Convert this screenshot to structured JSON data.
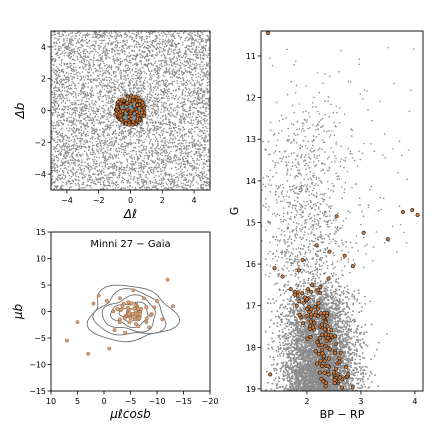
{
  "chart_data": [
    {
      "type": "scatter",
      "title": "",
      "xlabel": "Δℓ",
      "ylabel": "Δb",
      "xlim": [
        -5,
        5
      ],
      "ylim": [
        -5,
        5
      ],
      "xticks": [
        -4,
        -2,
        0,
        2,
        4
      ],
      "yticks": [
        -4,
        -2,
        0,
        2,
        4
      ],
      "grid": false,
      "series": [
        {
          "role": "field",
          "color": "#8c8c8c",
          "distribution": "uniform",
          "x_range": [
            -5,
            5
          ],
          "y_range": [
            -5,
            5
          ]
        },
        {
          "role": "cluster",
          "color": "#c8783a",
          "edgecolor": "#000000",
          "center": [
            0,
            0
          ],
          "radius": 0.95
        }
      ]
    },
    {
      "type": "scatter",
      "title": "Minni 27  −  Gaia",
      "xlabel": "μℓcosb",
      "ylabel": "μb",
      "xlim": [
        10,
        -20
      ],
      "ylim": [
        -15,
        15
      ],
      "xticks": [
        10,
        5,
        0,
        -5,
        -10,
        -15,
        -20
      ],
      "yticks": [
        -15,
        -10,
        -5,
        0,
        5,
        10,
        15
      ],
      "grid": false,
      "contours": {
        "color": "#707070",
        "center": [
          -5,
          -0.5
        ],
        "radii_x": [
          2,
          3.5,
          5,
          6.5,
          8
        ],
        "radii_y": [
          1.2,
          2.2,
          3.2,
          4.2,
          5.2
        ]
      },
      "points": {
        "color": "#d9a27a",
        "edgecolor": "#8a5a3a",
        "x": [
          7,
          3,
          -4.5,
          -5,
          -6,
          -3,
          -7,
          -8,
          -2,
          1,
          -10,
          -12,
          -9,
          -5.5,
          -4,
          -6.5,
          -3.5,
          -7.5,
          -11,
          -1,
          2,
          5,
          -13,
          -2.5,
          -8.5,
          -5,
          -6,
          -4.8,
          -5.2,
          -3,
          -9.5,
          -0.5
        ],
        "y": [
          -5.5,
          -8,
          0,
          1.5,
          -1,
          2.5,
          0.5,
          -2,
          -3.5,
          3,
          2,
          6,
          -0.5,
          4,
          -4,
          0,
          1,
          2.5,
          -1.5,
          -7,
          1.5,
          -2,
          1,
          0.5,
          -3,
          -1,
          -0.2,
          0.3,
          -0.5,
          -1.5,
          0.8,
          2
        ]
      }
    },
    {
      "type": "scatter",
      "title": "",
      "xlabel": "BP − RP",
      "ylabel": "G",
      "xlim": [
        1.15,
        4.15
      ],
      "ylim": [
        19.05,
        10.4
      ],
      "y_inverted": true,
      "xticks": [
        2,
        3,
        4
      ],
      "yticks": [
        11,
        12,
        13,
        14,
        15,
        16,
        17,
        18,
        19
      ],
      "grid": false,
      "field": {
        "color": "#8c8c8c"
      },
      "members": {
        "color": "#c8783a",
        "edgecolor": "#000000",
        "x": [
          1.28,
          2.55,
          3.05,
          3.5,
          3.78,
          3.95,
          4.05,
          2.18,
          2.42,
          1.92,
          1.4,
          2.7,
          2.85,
          1.7,
          2.4,
          1.55,
          2.1,
          1.85,
          2.25,
          1.32
        ],
        "y": [
          10.45,
          14.85,
          15.25,
          15.4,
          14.75,
          14.7,
          14.82,
          15.55,
          15.7,
          15.9,
          16.1,
          15.8,
          16.05,
          16.6,
          16.35,
          16.3,
          16.5,
          16.15,
          16.55,
          18.65
        ]
      },
      "member_band": {
        "x_start": 1.95,
        "x_end": 2.6,
        "y_start": 16.6,
        "y_end": 19.0,
        "width": 0.55,
        "count": 130
      }
    }
  ]
}
